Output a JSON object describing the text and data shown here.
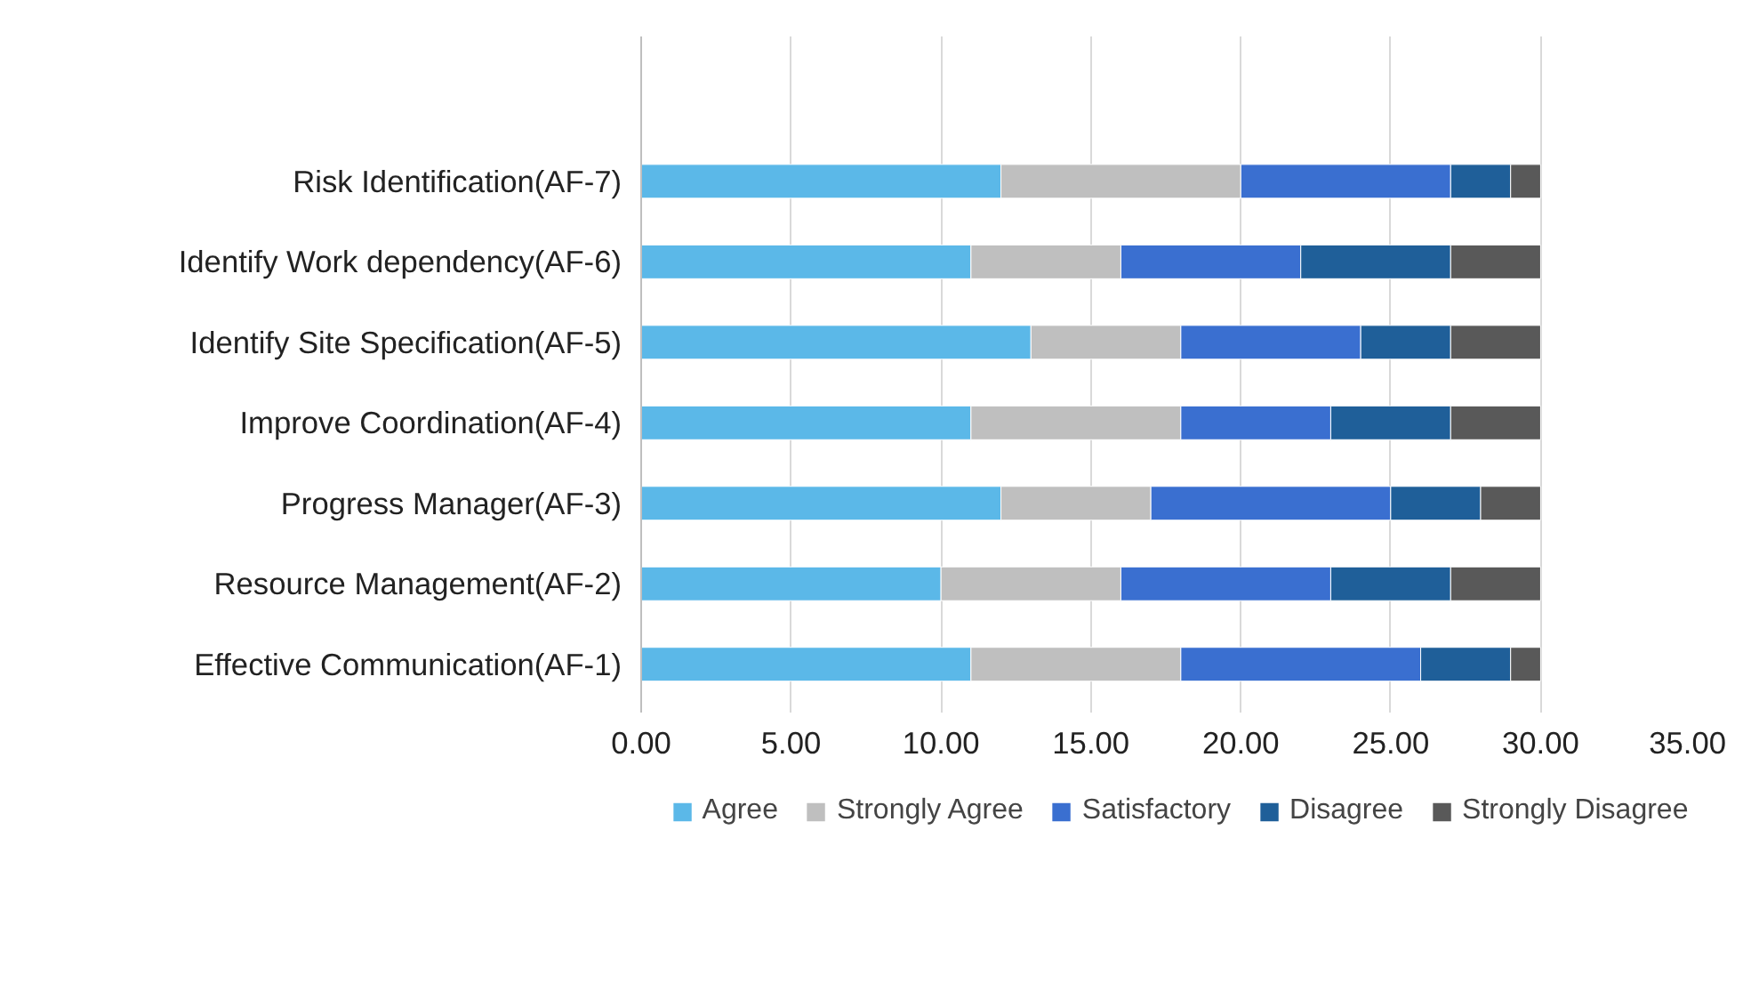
{
  "chart_data": {
    "type": "bar",
    "orientation": "horizontal",
    "stacked": true,
    "categories": [
      "Risk Identification(AF-7)",
      "Identify Work dependency(AF-6)",
      "Identify Site Specification(AF-5)",
      "Improve Coordination(AF-4)",
      "Progress Manager(AF-3)",
      "Resource Management(AF-2)",
      "Effective Communication(AF-1)"
    ],
    "series": [
      {
        "name": "Agree",
        "color": "#5bb8e8",
        "values": [
          12,
          11,
          13,
          11,
          12,
          10,
          11
        ]
      },
      {
        "name": "Strongly Agree",
        "color": "#bfbfbf",
        "values": [
          8,
          5,
          5,
          7,
          5,
          6,
          7
        ]
      },
      {
        "name": "Satisfactory",
        "color": "#3a6fd0",
        "values": [
          7,
          6,
          6,
          5,
          8,
          7,
          8
        ]
      },
      {
        "name": "Disagree",
        "color": "#1f5f99",
        "values": [
          2,
          5,
          3,
          4,
          3,
          4,
          3
        ]
      },
      {
        "name": "Strongly Disagree",
        "color": "#595959",
        "values": [
          1,
          3,
          3,
          3,
          2,
          3,
          1
        ]
      }
    ],
    "xlim": [
      0,
      35
    ],
    "xticks": [
      {
        "value": 0,
        "label": "0.00"
      },
      {
        "value": 5,
        "label": "5.00"
      },
      {
        "value": 10,
        "label": "10.00"
      },
      {
        "value": 15,
        "label": "15.00"
      },
      {
        "value": 20,
        "label": "20.00"
      },
      {
        "value": 25,
        "label": "25.00"
      },
      {
        "value": 30,
        "label": "30.00"
      },
      {
        "value": 35,
        "label": "35.00"
      }
    ],
    "grid": "x",
    "legend": "bottom"
  }
}
